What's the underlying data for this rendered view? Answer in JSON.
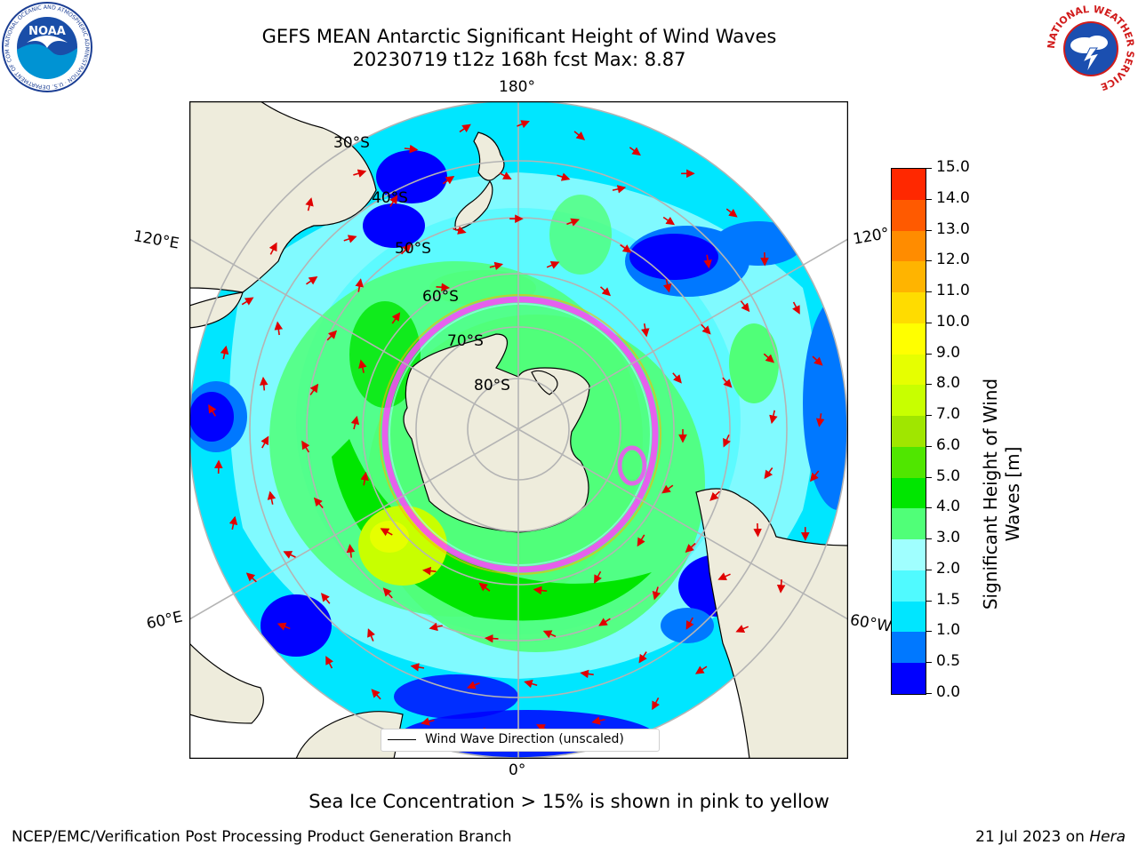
{
  "header": {
    "title_line1": "GEFS MEAN Antarctic Significant Height of Wind Waves",
    "title_line2": "20230719 t12z 168h fcst   Max: 8.87"
  },
  "logos": {
    "noaa_text": "NOAA",
    "noaa_ring_text": "NATIONAL OCEANIC AND ATMOSPHERIC ADMINISTRATION · U.S. DEPARTMENT OF COMMERCE",
    "nws_ring_text": "NATIONAL WEATHER SERVICE"
  },
  "map": {
    "projection": "south-polar-stereographic",
    "longitude_labels": {
      "top": "180°",
      "bottom": "0°",
      "left_upper": "120°E",
      "left_lower": "60°E",
      "right_upper": "120°",
      "right_lower": "60°W"
    },
    "latitude_labels": [
      "30°S",
      "40°S",
      "50°S",
      "60°S",
      "70°S",
      "80°S"
    ],
    "legend_label": "Wind Wave Direction (unscaled)",
    "colors": {
      "land": "#eeecdc",
      "ice_edge": "#ff44ff",
      "arrow": "#e00000",
      "grid": "#b4b4b4"
    }
  },
  "colorbar": {
    "label_line1": "Significant Height of Wind",
    "label_line2": "Waves [m]",
    "ticks": [
      "0.0",
      "0.5",
      "1.0",
      "1.5",
      "2.0",
      "3.0",
      "4.0",
      "5.0",
      "6.0",
      "7.0",
      "8.0",
      "9.0",
      "10.0",
      "11.0",
      "12.0",
      "13.0",
      "14.0",
      "15.0"
    ],
    "colors": [
      "#0000ff",
      "#0078ff",
      "#00e6ff",
      "#50faff",
      "#a0ffff",
      "#50ff78",
      "#00e600",
      "#50e600",
      "#a0e600",
      "#c8ff00",
      "#e6ff00",
      "#ffff00",
      "#ffdc00",
      "#ffb400",
      "#ff8c00",
      "#ff5a00",
      "#ff2800"
    ]
  },
  "footer": {
    "ice_note": "Sea Ice Concentration > 15% is shown in pink to yellow",
    "left": "NCEP/EMC/Verification Post Processing Product Generation Branch",
    "right_prefix": "21 Jul 2023 on ",
    "right_host": "Hera"
  }
}
